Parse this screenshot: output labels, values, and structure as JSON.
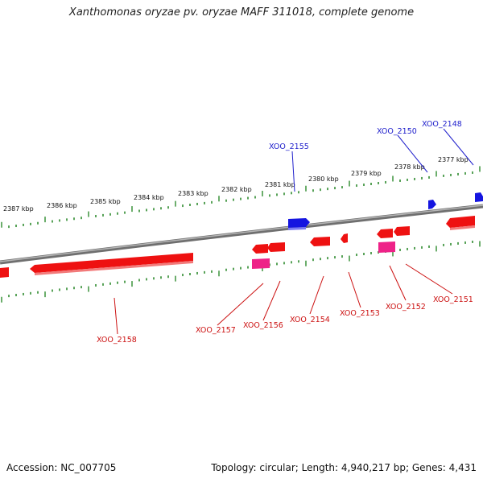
{
  "title": "Xanthomonas oryzae pv. oryzae MAFF 311018, complete genome",
  "footer": {
    "accession": "Accession: NC_007705",
    "topology": "Topology: circular; Length: 4,940,217 bp; Genes: 4,431"
  },
  "colors": {
    "backbone": "#8a8a8a",
    "ticks": "#2e8b2e",
    "forward_gene": "#1515e0",
    "reverse_gene": "#ee1111",
    "reverse_gene_alt": "#ee2288",
    "label_blue": "#2020cc",
    "label_red": "#cc1111"
  },
  "ruler": [
    {
      "label": "2387 kbp"
    },
    {
      "label": "2386 kbp"
    },
    {
      "label": "2385 kbp"
    },
    {
      "label": "2384 kbp"
    },
    {
      "label": "2383 kbp"
    },
    {
      "label": "2382 kbp"
    },
    {
      "label": "2381 kbp"
    },
    {
      "label": "2380 kbp"
    },
    {
      "label": "2379 kbp"
    },
    {
      "label": "2378 kbp"
    },
    {
      "label": "2377 kbp"
    }
  ],
  "gene_labels": [
    {
      "name": "XOO_2155",
      "strand": "forward"
    },
    {
      "name": "XOO_2150",
      "strand": "forward"
    },
    {
      "name": "XOO_2148",
      "strand": "forward"
    },
    {
      "name": "XOO_2158",
      "strand": "reverse"
    },
    {
      "name": "XOO_2157",
      "strand": "reverse"
    },
    {
      "name": "XOO_2156",
      "strand": "reverse"
    },
    {
      "name": "XOO_2154",
      "strand": "reverse"
    },
    {
      "name": "XOO_2153",
      "strand": "reverse"
    },
    {
      "name": "XOO_2152",
      "strand": "reverse"
    },
    {
      "name": "XOO_2151",
      "strand": "reverse"
    }
  ]
}
